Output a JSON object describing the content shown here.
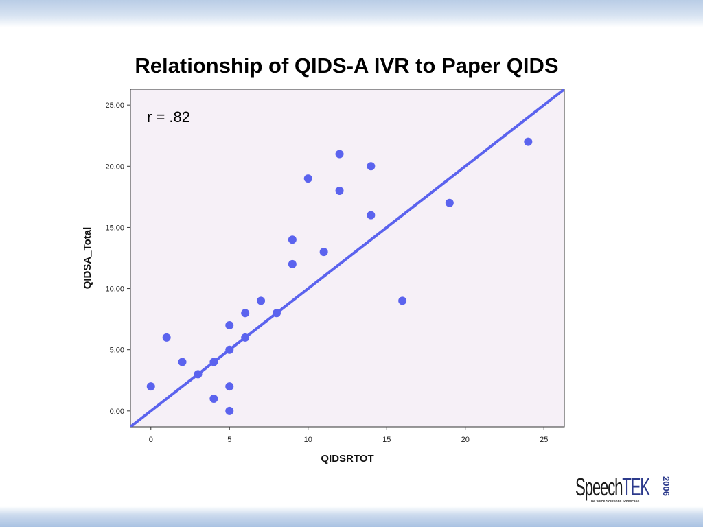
{
  "slide": {
    "title": "Relationship of QIDS-A IVR to Paper QIDS"
  },
  "logo": {
    "speech": "Speech",
    "tek": "TEK",
    "year": "2006",
    "tagline": "The Voice Solutions Showcase"
  },
  "colors": {
    "points": "#5b63ee",
    "line": "#5b63ee",
    "plot_bg": "#f6f0f7",
    "band": "#b9cde6"
  },
  "chart_data": {
    "type": "scatter",
    "title": "",
    "xlabel": "QIDSRTOT",
    "ylabel": "QIDSA_Total",
    "annotation": "r = .82",
    "xlim": [
      -1.3,
      26.3
    ],
    "ylim": [
      -1.3,
      26.3
    ],
    "x_ticks": [
      0,
      5,
      10,
      15,
      20,
      25
    ],
    "x_tick_labels": [
      "0",
      "5",
      "10",
      "15",
      "20",
      "25"
    ],
    "y_ticks": [
      0,
      5,
      10,
      15,
      20,
      25
    ],
    "y_tick_labels": [
      "0.00",
      "5.00",
      "10.00",
      "15.00",
      "20.00",
      "25.00"
    ],
    "grid": false,
    "legend": "none",
    "fit_line": {
      "slope": 1,
      "intercept": 0
    },
    "points": [
      {
        "x": 0,
        "y": 2
      },
      {
        "x": 1,
        "y": 6
      },
      {
        "x": 2,
        "y": 4
      },
      {
        "x": 3,
        "y": 3
      },
      {
        "x": 4,
        "y": 4
      },
      {
        "x": 4,
        "y": 1
      },
      {
        "x": 5,
        "y": 7
      },
      {
        "x": 5,
        "y": 5
      },
      {
        "x": 5,
        "y": 2
      },
      {
        "x": 5,
        "y": 0
      },
      {
        "x": 6,
        "y": 8
      },
      {
        "x": 6,
        "y": 6
      },
      {
        "x": 7,
        "y": 9
      },
      {
        "x": 8,
        "y": 8
      },
      {
        "x": 9,
        "y": 14
      },
      {
        "x": 9,
        "y": 12
      },
      {
        "x": 10,
        "y": 19
      },
      {
        "x": 11,
        "y": 13
      },
      {
        "x": 12,
        "y": 21
      },
      {
        "x": 12,
        "y": 18
      },
      {
        "x": 14,
        "y": 20
      },
      {
        "x": 14,
        "y": 16
      },
      {
        "x": 16,
        "y": 9
      },
      {
        "x": 19,
        "y": 17
      },
      {
        "x": 24,
        "y": 22
      }
    ]
  }
}
